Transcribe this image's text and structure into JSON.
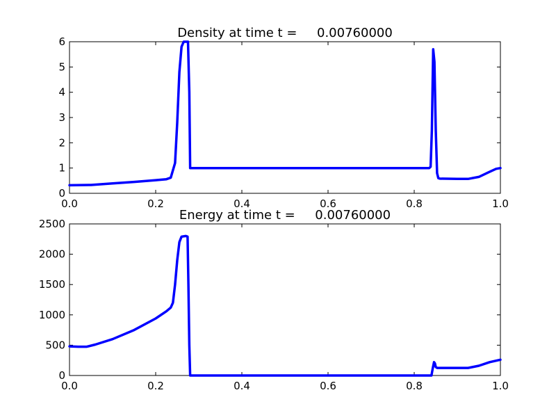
{
  "chart_data": [
    {
      "type": "line",
      "title": "Density at time t =     0.00760000",
      "xlabel": "",
      "ylabel": "",
      "xlim": [
        0.0,
        1.0
      ],
      "ylim": [
        0,
        6
      ],
      "xticks": [
        "0.0",
        "0.2",
        "0.4",
        "0.6",
        "0.8",
        "1.0"
      ],
      "yticks": [
        "0",
        "1",
        "2",
        "3",
        "4",
        "5",
        "6"
      ],
      "grid": false,
      "line_color": "#0000ff",
      "series": [
        {
          "x": [
            0.0,
            0.05,
            0.1,
            0.15,
            0.2,
            0.225,
            0.235,
            0.245,
            0.25,
            0.255,
            0.26,
            0.265,
            0.268,
            0.272,
            0.275,
            0.278,
            0.28,
            0.3,
            0.5,
            0.7,
            0.835,
            0.838,
            0.841,
            0.844,
            0.847,
            0.85,
            0.853,
            0.856,
            0.86,
            0.9,
            0.925,
            0.95,
            0.975,
            0.99,
            1.0
          ],
          "y": [
            0.32,
            0.33,
            0.39,
            0.45,
            0.52,
            0.56,
            0.62,
            1.2,
            2.8,
            4.8,
            5.8,
            6.0,
            6.0,
            6.0,
            6.0,
            4.0,
            1.0,
            1.0,
            1.0,
            1.0,
            1.0,
            1.05,
            2.5,
            5.7,
            5.2,
            2.5,
            0.8,
            0.6,
            0.58,
            0.57,
            0.57,
            0.65,
            0.85,
            0.97,
            1.0
          ]
        }
      ]
    },
    {
      "type": "line",
      "title": "Energy at time t =     0.00760000",
      "xlabel": "",
      "ylabel": "",
      "xlim": [
        0.0,
        1.0
      ],
      "ylim": [
        0,
        2500
      ],
      "xticks": [
        "0.0",
        "0.2",
        "0.4",
        "0.6",
        "0.8",
        "1.0"
      ],
      "yticks": [
        "0",
        "500",
        "1000",
        "1500",
        "2000",
        "2500"
      ],
      "grid": false,
      "line_color": "#0000ff",
      "series": [
        {
          "x": [
            0.0,
            0.02,
            0.04,
            0.06,
            0.1,
            0.15,
            0.2,
            0.225,
            0.235,
            0.24,
            0.245,
            0.25,
            0.255,
            0.26,
            0.27,
            0.274,
            0.276,
            0.278,
            0.28,
            0.3,
            0.5,
            0.7,
            0.84,
            0.843,
            0.846,
            0.848,
            0.85,
            0.853,
            0.86,
            0.9,
            0.925,
            0.95,
            0.975,
            1.0
          ],
          "y": [
            480,
            475,
            475,
            510,
            600,
            750,
            940,
            1060,
            1120,
            1200,
            1500,
            1900,
            2200,
            2290,
            2300,
            2290,
            1500,
            500,
            0,
            0,
            0,
            0,
            0,
            120,
            220,
            200,
            140,
            125,
            125,
            125,
            125,
            160,
            220,
            260
          ]
        }
      ]
    }
  ]
}
